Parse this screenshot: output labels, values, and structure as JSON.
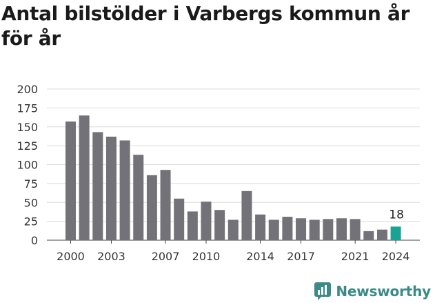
{
  "title": "Antal bilstölder i Varbergs kommun år för år",
  "brand": {
    "name": "Newsworthy",
    "icon": "newsworthy-logo-icon",
    "color": "#3a8a87"
  },
  "chart_data": {
    "type": "bar",
    "x": [
      2000,
      2001,
      2002,
      2003,
      2004,
      2005,
      2006,
      2007,
      2008,
      2009,
      2010,
      2011,
      2012,
      2013,
      2014,
      2015,
      2016,
      2017,
      2018,
      2019,
      2020,
      2021,
      2022,
      2023,
      2024
    ],
    "values": [
      157,
      165,
      143,
      137,
      132,
      113,
      86,
      93,
      55,
      38,
      51,
      40,
      27,
      65,
      34,
      27,
      31,
      29,
      27,
      28,
      29,
      28,
      12,
      14,
      18
    ],
    "x_ticks": [
      2000,
      2003,
      2007,
      2010,
      2014,
      2017,
      2021,
      2024
    ],
    "y_ticks": [
      0,
      25,
      50,
      75,
      100,
      125,
      150,
      175,
      200
    ],
    "ylim": [
      0,
      200
    ],
    "bar_color": "#737278",
    "highlight_color": "#1aa394",
    "highlight_index": 24,
    "highlight_label": "18",
    "grid": true
  }
}
